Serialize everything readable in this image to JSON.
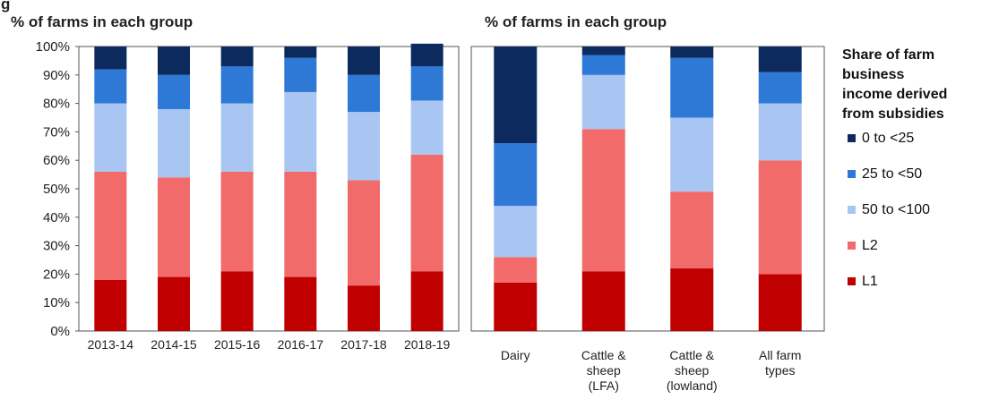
{
  "figure": {
    "corner_label": "g"
  },
  "legend": {
    "title_lines": [
      "Share of farm",
      "business",
      "income derived",
      "from subsidies"
    ],
    "items": [
      "0 to <25",
      "25 to <50",
      "50 to <100",
      "L2",
      "L1"
    ],
    "colors": [
      "#0d2a5e",
      "#2e78d6",
      "#a9c6f2",
      "#f26b6b",
      "#c00000"
    ]
  },
  "chart_data": [
    {
      "type": "bar",
      "stacked": true,
      "title": "% of farms in each group",
      "ylim": [
        0,
        100
      ],
      "yticks": [
        "0%",
        "10%",
        "20%",
        "30%",
        "40%",
        "50%",
        "60%",
        "70%",
        "80%",
        "90%",
        "100%"
      ],
      "categories": [
        [
          "2013-14"
        ],
        [
          "2014-15"
        ],
        [
          "2015-16"
        ],
        [
          "2016-17"
        ],
        [
          "2017-18"
        ],
        [
          "2018-19"
        ]
      ],
      "series": [
        {
          "name": "L1",
          "values": [
            18,
            19,
            21,
            19,
            16,
            21
          ]
        },
        {
          "name": "L2",
          "values": [
            38,
            35,
            35,
            37,
            37,
            41
          ]
        },
        {
          "name": "50 to <100",
          "values": [
            24,
            24,
            24,
            28,
            24,
            19
          ]
        },
        {
          "name": "25 to <50",
          "values": [
            12,
            12,
            13,
            12,
            13,
            12
          ]
        },
        {
          "name": "0 to <25",
          "values": [
            8,
            10,
            7,
            4,
            10,
            8
          ]
        }
      ]
    },
    {
      "type": "bar",
      "stacked": true,
      "title": "% of farms in each group",
      "ylim": [
        0,
        100
      ],
      "categories": [
        [
          "Dairy"
        ],
        [
          "Cattle &",
          "sheep",
          "(LFA)"
        ],
        [
          "Cattle &",
          "sheep",
          "(lowland)"
        ],
        [
          "All farm",
          "types"
        ]
      ],
      "series": [
        {
          "name": "L1",
          "values": [
            17,
            21,
            22,
            20
          ]
        },
        {
          "name": "L2",
          "values": [
            9,
            50,
            27,
            40
          ]
        },
        {
          "name": "50 to <100",
          "values": [
            18,
            19,
            26,
            20
          ]
        },
        {
          "name": "25 to <50",
          "values": [
            22,
            7,
            21,
            11
          ]
        },
        {
          "name": "0 to <25",
          "values": [
            34,
            3,
            4,
            9
          ]
        }
      ]
    }
  ]
}
